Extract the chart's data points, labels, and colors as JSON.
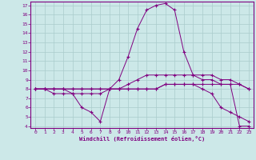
{
  "xlabel": "Windchill (Refroidissement éolien,°C)",
  "background_color": "#cce8e8",
  "grid_color": "#aacccc",
  "line_color": "#800080",
  "xlim": [
    -0.5,
    23.5
  ],
  "ylim": [
    3.8,
    17.4
  ],
  "yticks": [
    4,
    5,
    6,
    7,
    8,
    9,
    10,
    11,
    12,
    13,
    14,
    15,
    16,
    17
  ],
  "xticks": [
    0,
    1,
    2,
    3,
    4,
    5,
    6,
    7,
    8,
    9,
    10,
    11,
    12,
    13,
    14,
    15,
    16,
    17,
    18,
    19,
    20,
    21,
    22,
    23
  ],
  "line1_x": [
    0,
    1,
    2,
    3,
    4,
    5,
    6,
    7,
    8,
    9,
    10,
    11,
    12,
    13,
    14,
    15,
    16,
    17,
    18,
    19,
    20,
    21,
    22,
    23
  ],
  "line1_y": [
    8,
    8,
    8,
    8,
    8,
    8,
    8,
    8,
    8,
    8,
    8.5,
    9,
    9.5,
    9.5,
    9.5,
    9.5,
    9.5,
    9.5,
    9.5,
    9.5,
    9,
    9,
    8.5,
    8
  ],
  "line2_x": [
    0,
    1,
    2,
    3,
    4,
    5,
    6,
    7,
    8,
    9,
    10,
    11,
    12,
    13,
    14,
    15,
    16,
    17,
    18,
    19,
    20,
    21,
    22,
    23
  ],
  "line2_y": [
    8,
    8,
    7.5,
    7.5,
    7.5,
    6,
    5.5,
    4.5,
    8,
    9,
    11.5,
    14.5,
    16.5,
    17,
    17.2,
    16.5,
    12,
    9.5,
    9,
    9,
    8.5,
    8.5,
    4,
    4
  ],
  "line3_x": [
    0,
    1,
    2,
    3,
    4,
    5,
    6,
    7,
    8,
    9,
    10,
    11,
    12,
    13,
    14,
    15,
    16,
    17,
    18,
    19,
    20,
    21,
    22,
    23
  ],
  "line3_y": [
    8,
    8,
    8,
    8,
    8,
    8,
    8,
    8,
    8,
    8,
    8,
    8,
    8,
    8,
    8.5,
    8.5,
    8.5,
    8.5,
    8.5,
    8.5,
    8.5,
    8.5,
    8.5,
    8
  ],
  "line4_x": [
    0,
    1,
    2,
    3,
    4,
    5,
    6,
    7,
    8,
    9,
    10,
    11,
    12,
    13,
    14,
    15,
    16,
    17,
    18,
    19,
    20,
    21,
    22,
    23
  ],
  "line4_y": [
    8,
    8,
    8,
    8,
    7.5,
    7.5,
    7.5,
    7.5,
    8,
    8,
    8,
    8,
    8,
    8,
    8.5,
    8.5,
    8.5,
    8.5,
    8,
    7.5,
    6,
    5.5,
    5,
    4.5
  ]
}
